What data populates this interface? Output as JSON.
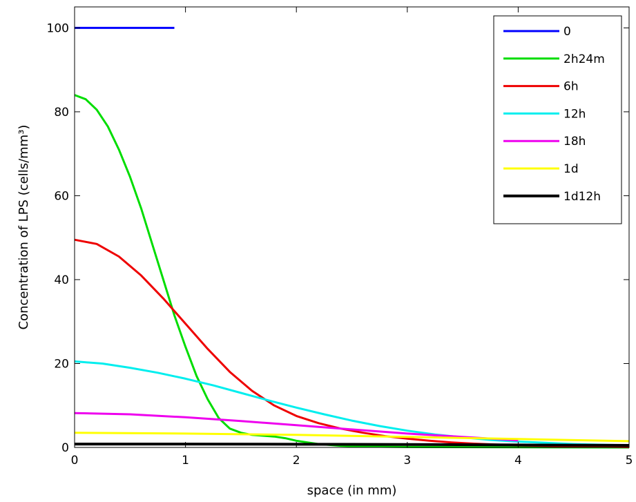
{
  "chart_data": {
    "type": "line",
    "title": "",
    "xlabel": "space (in mm)",
    "ylabel": "Concentration of LPS (cells/mm³)",
    "xlim": [
      0,
      5
    ],
    "ylim": [
      0,
      105
    ],
    "xticks": [
      0,
      1,
      2,
      3,
      4,
      5
    ],
    "yticks": [
      0,
      20,
      40,
      60,
      80,
      100
    ],
    "grid": false,
    "legend_position": "top-right",
    "series": [
      {
        "name": "0",
        "color": "#0000ff",
        "x": [
          0,
          0.9
        ],
        "y": [
          100,
          100
        ]
      },
      {
        "name": "2h24m",
        "color": "#00dd00",
        "x": [
          0,
          0.1,
          0.2,
          0.3,
          0.4,
          0.5,
          0.6,
          0.7,
          0.8,
          0.9,
          1.0,
          1.1,
          1.2,
          1.3,
          1.4,
          1.5,
          1.6,
          1.7,
          1.8,
          1.9,
          2.0,
          2.2,
          2.4,
          2.6,
          3.0,
          5.0
        ],
        "y": [
          84,
          83,
          80.5,
          76.5,
          71,
          64.5,
          57,
          48.5,
          40,
          31.5,
          24,
          17,
          11.5,
          7,
          4.5,
          3.5,
          3,
          2.8,
          2.6,
          2.2,
          1.6,
          0.8,
          0.4,
          0.2,
          0.1,
          0
        ]
      },
      {
        "name": "6h",
        "color": "#ee0000",
        "x": [
          0,
          0.2,
          0.4,
          0.6,
          0.8,
          1.0,
          1.2,
          1.4,
          1.6,
          1.8,
          2.0,
          2.2,
          2.4,
          2.6,
          2.8,
          3.0,
          3.2,
          3.4,
          3.6,
          4.0,
          4.5,
          5.0
        ],
        "y": [
          49.5,
          48.5,
          45.5,
          41,
          35.5,
          29.5,
          23.5,
          18,
          13.5,
          10,
          7.5,
          5.8,
          4.5,
          3.5,
          2.7,
          2.1,
          1.6,
          1.2,
          0.9,
          0.5,
          0.25,
          0.1
        ]
      },
      {
        "name": "12h",
        "color": "#00eeee",
        "x": [
          0,
          0.25,
          0.5,
          0.75,
          1.0,
          1.25,
          1.5,
          1.75,
          2.0,
          2.25,
          2.5,
          2.75,
          3.0,
          3.25,
          3.5,
          3.75,
          4.0,
          4.5,
          5.0
        ],
        "y": [
          20.5,
          20,
          19,
          17.8,
          16.4,
          14.8,
          13,
          11.2,
          9.5,
          7.9,
          6.4,
          5.1,
          4,
          3.1,
          2.4,
          1.8,
          1.4,
          0.8,
          0.5
        ]
      },
      {
        "name": "18h",
        "color": "#ee00ee",
        "x": [
          0,
          0.5,
          1.0,
          1.5,
          2.0,
          2.5,
          3.0,
          3.5,
          4.0
        ],
        "y": [
          8.2,
          7.9,
          7.2,
          6.3,
          5.3,
          4.3,
          3.3,
          2.5,
          1.7
        ]
      },
      {
        "name": "1d",
        "color": "#ffff00",
        "x": [
          0,
          1.0,
          2.0,
          3.0,
          4.0,
          5.0
        ],
        "y": [
          3.5,
          3.3,
          3.0,
          2.5,
          2.0,
          1.5
        ]
      },
      {
        "name": "1d12h",
        "color": "#000000",
        "x": [
          0,
          1.0,
          2.0,
          3.0,
          4.0,
          5.0
        ],
        "y": [
          0.8,
          0.8,
          0.75,
          0.7,
          0.6,
          0.5
        ]
      }
    ]
  }
}
